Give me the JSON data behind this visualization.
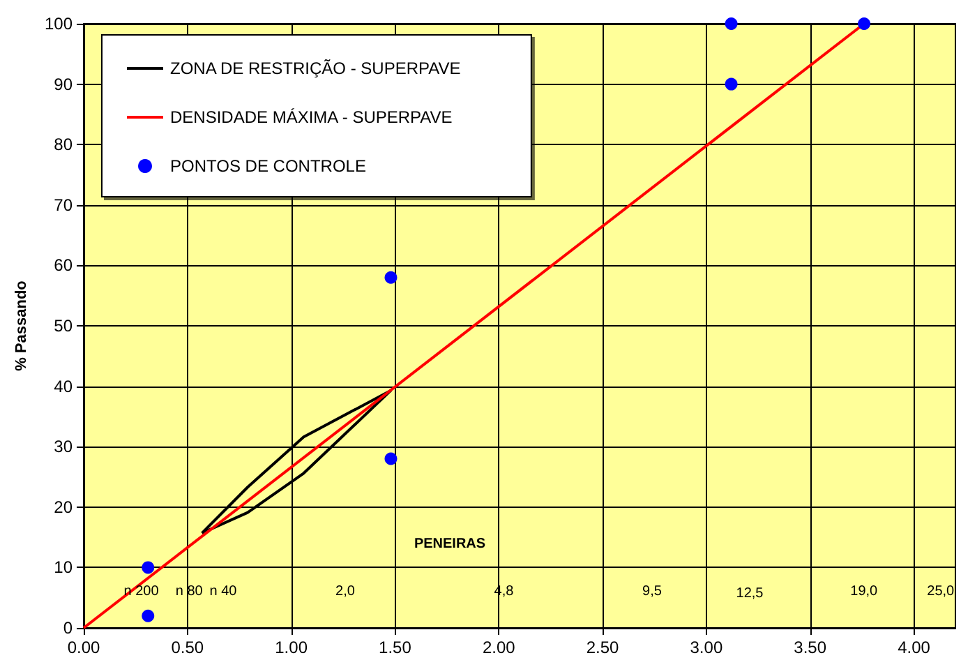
{
  "chart_data": {
    "type": "line",
    "ylabel": "% Passando",
    "xlabel": "PENEIRAS",
    "xlim": [
      0,
      4.2
    ],
    "xticks": [
      {
        "value": 0,
        "label": "0.00"
      },
      {
        "value": 0.5,
        "label": "0.50"
      },
      {
        "value": 1,
        "label": "1.00"
      },
      {
        "value": 1.5,
        "label": "1.50"
      },
      {
        "value": 2,
        "label": "2.00"
      },
      {
        "value": 2.5,
        "label": "2.50"
      },
      {
        "value": 3,
        "label": "3.00"
      },
      {
        "value": 3.5,
        "label": "3.50"
      },
      {
        "value": 4,
        "label": "4.00"
      }
    ],
    "ylim": [
      0,
      100
    ],
    "yticks": [
      0,
      10,
      20,
      30,
      40,
      50,
      60,
      70,
      80,
      90,
      100
    ],
    "grid": true,
    "legend": "top left",
    "line_style": "solid",
    "series": [
      {
        "name": "ZONA DE RESTRIÇÃO - SUPERPAVE",
        "type": "line",
        "color": "#000000",
        "x": [
          0.57,
          0.79,
          1.06,
          1.48
        ],
        "values": [
          15.7,
          23.3,
          31.6,
          39.3
        ]
      },
      {
        "type": "line",
        "color": "#000000",
        "x": [
          0.57,
          0.79,
          1.06,
          1.48
        ],
        "values": [
          15.7,
          19.1,
          25.6,
          39.3
        ]
      },
      {
        "name": "DENSIDADE MÁXIMA - SUPERPAVE",
        "type": "line",
        "color": "#ff0000",
        "x": [
          0,
          3.76
        ],
        "values": [
          0,
          100
        ]
      },
      {
        "name": "PONTOS DE CONTROLE",
        "type": "scatter",
        "marker": "circle",
        "color": "#0000ff",
        "x": [
          0.31,
          0.31,
          1.48,
          1.48,
          3.12,
          3.12,
          3.76
        ],
        "values": [
          10,
          2,
          58,
          28,
          100,
          90,
          100
        ]
      }
    ],
    "annotations": [
      "n 200",
      "n 80",
      "n 40",
      "2,0",
      "4,8",
      "9,5",
      "12,5",
      "19,0",
      "25,0"
    ]
  }
}
